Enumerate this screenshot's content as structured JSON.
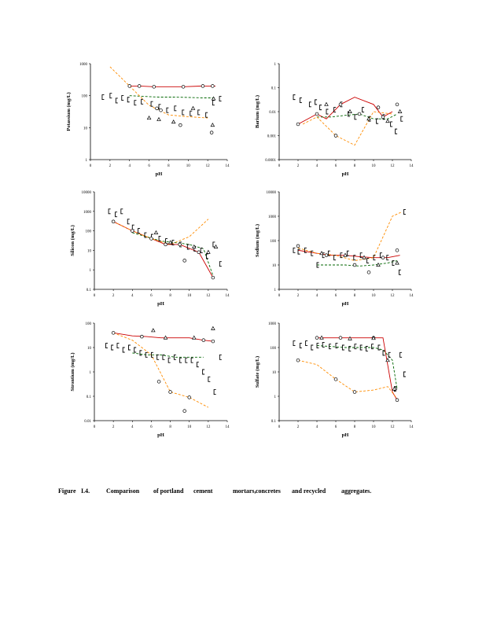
{
  "colors": {
    "axis": "#000000",
    "series_red": "#cc0000",
    "series_green": "#006600",
    "series_orange": "#ff8c00",
    "markers": "#000000"
  },
  "caption": {
    "words": [
      "Figure",
      "I.4.",
      "Comparison",
      "of portland",
      "cement",
      "mortars,",
      "concretes",
      "and recycled",
      "aggregates."
    ]
  },
  "chart_data": [
    {
      "type": "scatter",
      "ylabel": "Potassium (mg/L)",
      "xlabel": "pH",
      "y_scale": "log",
      "xlim": [
        0,
        14
      ],
      "ylim": [
        1,
        1000
      ],
      "xticks": [
        "0",
        "2",
        "4",
        "6",
        "8",
        "10",
        "12",
        "14"
      ],
      "yticks": [
        "1",
        "10",
        "100",
        "1000"
      ],
      "lines": [
        {
          "color": "red",
          "style": "solid",
          "x": [
            4,
            5,
            6.5,
            9.5,
            11.5,
            12.8
          ],
          "y": [
            200,
            200,
            190,
            190,
            200,
            200
          ]
        },
        {
          "color": "green",
          "style": "dashed",
          "x": [
            4,
            5.5,
            7,
            8.5,
            10,
            11.5,
            12.8
          ],
          "y": [
            100,
            95,
            90,
            90,
            88,
            85,
            85
          ]
        },
        {
          "color": "orange",
          "style": "dashed",
          "x": [
            2,
            4,
            6,
            8,
            10,
            12
          ],
          "y": [
            800,
            200,
            50,
            25,
            22,
            20
          ]
        }
      ],
      "markers": [
        {
          "shape": "bracket",
          "x": [
            1.2,
            2,
            2.6,
            3.2,
            3.8,
            4.5,
            5.2,
            6.2,
            7,
            7.8,
            8.6,
            9.4,
            10.2,
            11,
            11.8,
            12.5,
            13.2
          ],
          "y": [
            90,
            100,
            70,
            85,
            75,
            60,
            65,
            55,
            45,
            35,
            40,
            30,
            28,
            30,
            25,
            60,
            80
          ]
        },
        {
          "shape": "circle",
          "x": [
            4,
            5,
            6.5,
            9.5,
            11.5,
            12.5,
            6.8,
            7.2,
            9.2,
            12.4
          ],
          "y": [
            200,
            200,
            190,
            190,
            200,
            200,
            40,
            35,
            12,
            7
          ]
        },
        {
          "shape": "triangle",
          "x": [
            6,
            7,
            8.5,
            10.5,
            12.5,
            12.6
          ],
          "y": [
            20,
            18,
            15,
            40,
            12,
            80
          ]
        }
      ]
    },
    {
      "type": "scatter",
      "ylabel": "Barium (mg/L)",
      "xlabel": "pH",
      "y_scale": "log",
      "xlim": [
        0,
        14
      ],
      "ylim": [
        0.0001,
        1
      ],
      "xticks": [
        "0",
        "2",
        "4",
        "6",
        "8",
        "10",
        "12",
        "14"
      ],
      "yticks": [
        "0.0001",
        "0.001",
        "0.01",
        "0.1",
        "1"
      ],
      "lines": [
        {
          "color": "red",
          "style": "solid",
          "x": [
            2,
            4,
            5,
            6.5,
            8,
            10,
            11,
            12
          ],
          "y": [
            0.003,
            0.008,
            0.005,
            0.02,
            0.04,
            0.02,
            0.006,
            0.01
          ]
        },
        {
          "color": "green",
          "style": "dashed",
          "x": [
            4,
            5.5,
            7,
            8.5,
            10,
            11.5,
            12.5
          ],
          "y": [
            0.006,
            0.006,
            0.007,
            0.008,
            0.005,
            0.005,
            0.008
          ]
        },
        {
          "color": "orange",
          "style": "dashed",
          "x": [
            2.5,
            4,
            6,
            8,
            10,
            12
          ],
          "y": [
            0.003,
            0.006,
            0.001,
            0.0004,
            0.01,
            0.008
          ]
        }
      ],
      "markers": [
        {
          "shape": "bracket",
          "x": [
            1.5,
            2.2,
            3.2,
            3.8,
            4.3,
            5,
            5.8,
            6.5,
            7.3,
            8,
            8.8,
            9.5,
            10.3,
            11,
            11.8,
            12.3,
            12.9
          ],
          "y": [
            0.04,
            0.03,
            0.02,
            0.025,
            0.015,
            0.01,
            0.012,
            0.02,
            0.008,
            0.006,
            0.012,
            0.005,
            0.004,
            0.006,
            0.003,
            0.0015,
            0.005
          ]
        },
        {
          "shape": "circle",
          "x": [
            2,
            4,
            6.5,
            8.5,
            11,
            12.5,
            6,
            10.5
          ],
          "y": [
            0.003,
            0.008,
            0.02,
            0.008,
            0.006,
            0.02,
            0.001,
            0.015
          ]
        },
        {
          "shape": "triangle",
          "x": [
            5,
            7.5,
            9.5,
            11.5,
            12.8
          ],
          "y": [
            0.02,
            0.01,
            0.005,
            0.004,
            0.01
          ]
        }
      ]
    },
    {
      "type": "scatter",
      "ylabel": "Silicon (mg/L)",
      "xlabel": "pH",
      "y_scale": "log",
      "xlim": [
        0,
        14
      ],
      "ylim": [
        0.1,
        10000
      ],
      "xticks": [
        "0",
        "2",
        "4",
        "6",
        "8",
        "10",
        "12",
        "14"
      ],
      "yticks": [
        "0.1",
        "1",
        "10",
        "100",
        "1000",
        "10000"
      ],
      "lines": [
        {
          "color": "red",
          "style": "solid",
          "x": [
            2,
            4,
            6,
            7.5,
            9,
            11,
            12.5
          ],
          "y": [
            300,
            100,
            40,
            20,
            20,
            8,
            0.4
          ]
        },
        {
          "color": "green",
          "style": "dashed",
          "x": [
            4,
            5.5,
            7,
            8.5,
            10,
            11.5,
            12.5
          ],
          "y": [
            80,
            50,
            30,
            25,
            20,
            12,
            0.5
          ]
        },
        {
          "color": "orange",
          "style": "dashed",
          "x": [
            2,
            4,
            6,
            8,
            10,
            12
          ],
          "y": [
            300,
            100,
            40,
            20,
            50,
            400
          ]
        }
      ],
      "markers": [
        {
          "shape": "bracket",
          "x": [
            1.5,
            2.2,
            2.8,
            3.5,
            4,
            4.6,
            5.3,
            6,
            6.8,
            7.5,
            8.2,
            9,
            9.8,
            10.5,
            11.2,
            11.8,
            12.5,
            13.2
          ],
          "y": [
            1000,
            700,
            1000,
            300,
            150,
            100,
            60,
            50,
            40,
            30,
            25,
            20,
            15,
            12,
            10,
            5,
            20,
            2
          ]
        },
        {
          "shape": "circle",
          "x": [
            2,
            4,
            6,
            7.5,
            9,
            9.5,
            11,
            12.5
          ],
          "y": [
            300,
            100,
            40,
            20,
            20,
            3,
            8,
            0.4
          ]
        },
        {
          "shape": "triangle",
          "x": [
            6.5,
            8,
            10.5,
            12,
            12.8
          ],
          "y": [
            80,
            25,
            15,
            8,
            15
          ]
        }
      ]
    },
    {
      "type": "scatter",
      "ylabel": "Sodium (mg/L)",
      "xlabel": "pH",
      "y_scale": "log",
      "xlim": [
        0,
        14
      ],
      "ylim": [
        1,
        10000
      ],
      "xticks": [
        "0",
        "2",
        "4",
        "6",
        "8",
        "10",
        "12",
        "14"
      ],
      "yticks": [
        "1",
        "10",
        "100",
        "1000",
        "10000"
      ],
      "lines": [
        {
          "color": "red",
          "style": "solid",
          "x": [
            2,
            4,
            5.5,
            7,
            8.5,
            10,
            11.5,
            12.8
          ],
          "y": [
            40,
            30,
            25,
            25,
            22,
            20,
            20,
            25
          ]
        },
        {
          "color": "green",
          "style": "dashed",
          "x": [
            4,
            5.5,
            7,
            8.5,
            10,
            11.5,
            12.5
          ],
          "y": [
            10,
            10,
            10,
            9,
            10,
            12,
            15
          ]
        },
        {
          "color": "orange",
          "style": "dashed",
          "x": [
            2,
            4,
            6,
            8,
            10,
            12,
            13
          ],
          "y": [
            50,
            30,
            25,
            15,
            20,
            1000,
            1500
          ]
        }
      ],
      "markers": [
        {
          "shape": "bracket",
          "x": [
            1.5,
            2,
            2.7,
            3.4,
            4,
            4.6,
            5.2,
            5.8,
            6.5,
            7.2,
            7.9,
            8.6,
            9.3,
            10,
            10.7,
            11.4,
            12,
            12.7,
            13.2
          ],
          "y": [
            40,
            35,
            40,
            30,
            10,
            25,
            30,
            20,
            25,
            30,
            20,
            25,
            15,
            20,
            25,
            20,
            12,
            5,
            1500
          ]
        },
        {
          "shape": "circle",
          "x": [
            2,
            5,
            8,
            9.5,
            11,
            12.5
          ],
          "y": [
            60,
            25,
            10,
            5,
            20,
            40
          ]
        },
        {
          "shape": "triangle",
          "x": [
            4.5,
            7,
            9,
            10.5,
            12.5
          ],
          "y": [
            30,
            25,
            20,
            10,
            12
          ]
        }
      ]
    },
    {
      "type": "scatter",
      "ylabel": "Strontium (mg/L)",
      "xlabel": "pH",
      "y_scale": "log",
      "xlim": [
        0,
        14
      ],
      "ylim": [
        0.01,
        100
      ],
      "xticks": [
        "0",
        "2",
        "4",
        "6",
        "8",
        "10",
        "12",
        "14"
      ],
      "yticks": [
        "0.01",
        "0.1",
        "1",
        "10",
        "100"
      ],
      "lines": [
        {
          "color": "red",
          "style": "solid",
          "x": [
            2,
            4,
            5.5,
            7,
            8.5,
            10,
            11.5,
            12.5
          ],
          "y": [
            40,
            30,
            28,
            25,
            25,
            25,
            20,
            18
          ]
        },
        {
          "color": "green",
          "style": "dashed",
          "x": [
            4,
            5.5,
            7,
            8.5,
            10,
            11.5
          ],
          "y": [
            6,
            5,
            5,
            4,
            4,
            4
          ]
        },
        {
          "color": "orange",
          "style": "dashed",
          "x": [
            2,
            4,
            6,
            8,
            10,
            12
          ],
          "y": [
            40,
            20,
            5,
            0.15,
            0.09,
            0.035
          ]
        }
      ],
      "markers": [
        {
          "shape": "bracket",
          "x": [
            1.2,
            1.8,
            2.4,
            3,
            3.6,
            4.2,
            4.8,
            5.4,
            6,
            6.6,
            7.2,
            7.8,
            8.4,
            9,
            9.6,
            10.2,
            10.8,
            11.4,
            12,
            12.6,
            13.2
          ],
          "y": [
            12,
            10,
            12,
            8,
            10,
            8,
            6,
            5,
            5,
            4,
            4,
            3,
            4,
            3,
            3,
            3,
            2,
            1,
            0.5,
            0.15,
            4
          ]
        },
        {
          "shape": "circle",
          "x": [
            2,
            5,
            6.8,
            8,
            9.5,
            10,
            11.5,
            12.5
          ],
          "y": [
            40,
            28,
            0.4,
            0.15,
            0.025,
            0.09,
            20,
            18
          ]
        },
        {
          "shape": "triangle",
          "x": [
            6.2,
            7.5,
            10.5,
            12.5
          ],
          "y": [
            50,
            25,
            25,
            60
          ]
        }
      ]
    },
    {
      "type": "scatter",
      "ylabel": "Sulfate (mg/L)",
      "xlabel": "pH",
      "y_scale": "log",
      "xlim": [
        0,
        14
      ],
      "ylim": [
        0.1,
        1000
      ],
      "xticks": [
        "0",
        "2",
        "4",
        "6",
        "8",
        "10",
        "12",
        "14"
      ],
      "yticks": [
        "0.1",
        "1",
        "10",
        "100",
        "1000"
      ],
      "lines": [
        {
          "color": "red",
          "style": "solid",
          "x": [
            4,
            5.5,
            7,
            8.5,
            10,
            11,
            12,
            12.5
          ],
          "y": [
            250,
            250,
            250,
            250,
            250,
            250,
            1.5,
            0.7
          ]
        },
        {
          "color": "green",
          "style": "dashed",
          "x": [
            4,
            5.5,
            7,
            8.5,
            10,
            11,
            12,
            12.5
          ],
          "y": [
            120,
            110,
            100,
            100,
            100,
            80,
            30,
            2
          ]
        },
        {
          "color": "orange",
          "style": "dashed",
          "x": [
            2,
            4,
            6,
            8,
            10,
            11.5,
            12.5
          ],
          "y": [
            30,
            20,
            5,
            1.5,
            1.8,
            2.5,
            0.8
          ]
        }
      ],
      "markers": [
        {
          "shape": "bracket",
          "x": [
            1.5,
            2.2,
            2.8,
            3.4,
            4,
            4.6,
            5.3,
            6,
            6.7,
            7.4,
            8,
            8.6,
            9.2,
            9.8,
            10.5,
            11,
            11.6,
            12.2,
            12.8,
            13.2
          ],
          "y": [
            150,
            120,
            150,
            100,
            120,
            130,
            110,
            120,
            100,
            90,
            110,
            100,
            90,
            110,
            100,
            60,
            50,
            2,
            50,
            8
          ]
        },
        {
          "shape": "circle",
          "x": [
            2,
            4,
            6,
            8,
            10,
            12.3,
            12.5,
            6.5
          ],
          "y": [
            30,
            250,
            5,
            1.5,
            250,
            2,
            0.7,
            250
          ]
        },
        {
          "shape": "triangle",
          "x": [
            4.5,
            7.5,
            10,
            11.5,
            12.2
          ],
          "y": [
            250,
            230,
            240,
            30,
            2
          ]
        }
      ]
    }
  ]
}
